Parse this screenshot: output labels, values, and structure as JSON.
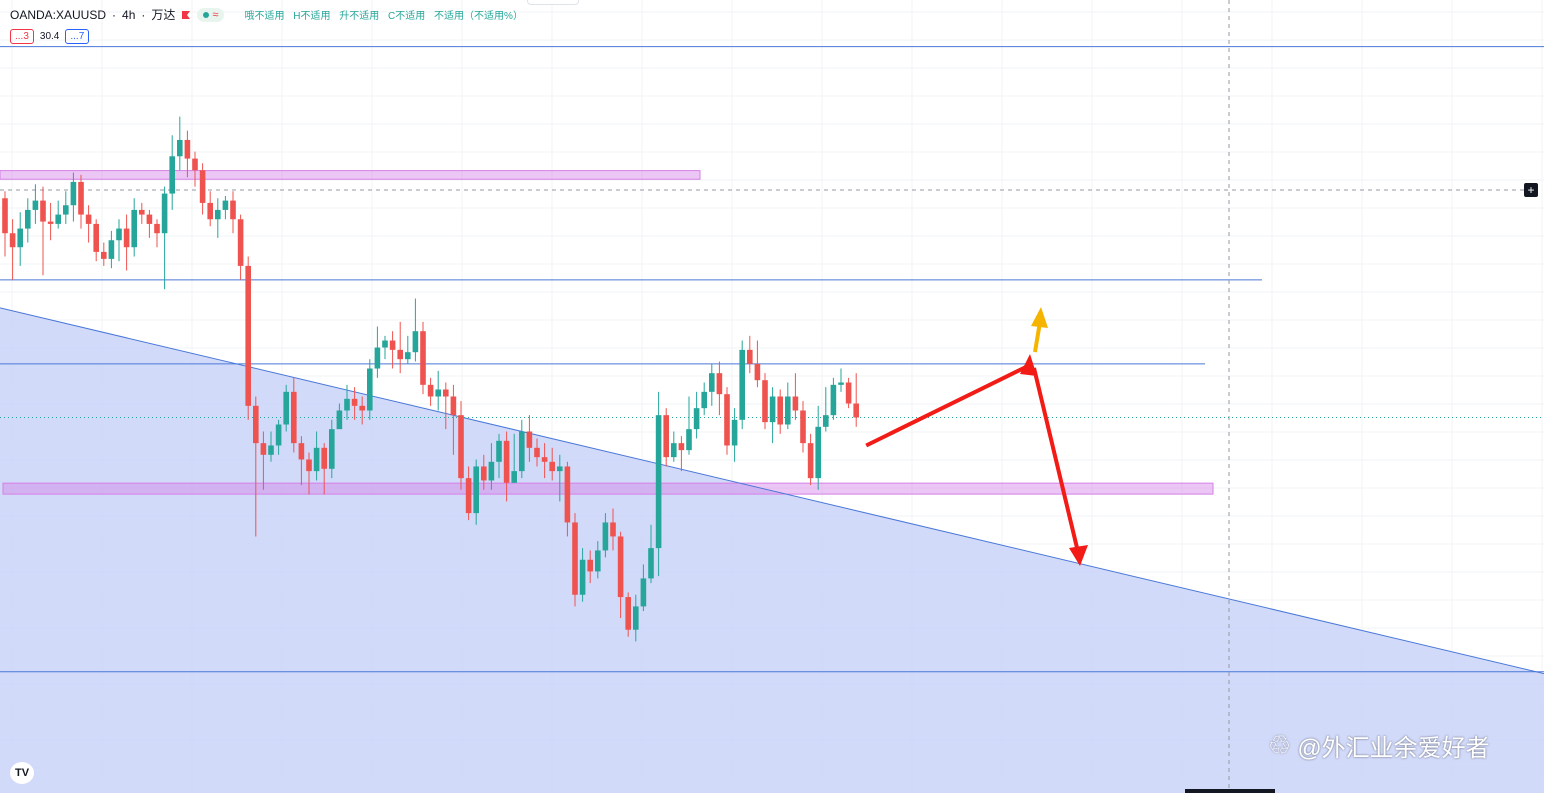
{
  "header": {
    "symbol": "OANDA:XAUUSD",
    "interval": "4h",
    "source": "万达",
    "approx_symbol": "≈",
    "ohlc": [
      "哦不适用",
      "H不适用",
      "升不适用",
      "C不适用",
      "不适用（不适用%）"
    ],
    "indicator_1": "...3",
    "indicator_value": "30.4",
    "indicator_2": "...7"
  },
  "watermark": {
    "text": "@外汇业余爱好者"
  },
  "logo": {
    "text": "TV"
  },
  "colors": {
    "up": "#26a69a",
    "down": "#ef5350",
    "zone_fill": "#c5d0f8",
    "line": "#4a78d8",
    "purple_band": "#d580e6",
    "arrow_red": "#f21b16",
    "arrow_yellow": "#f5b400"
  },
  "chart_data": {
    "type": "candlestick",
    "symbol": "XAUUSD",
    "timeframe": "4h",
    "ohlc": [
      [
        1895,
        1880,
        1898,
        1870
      ],
      [
        1880,
        1874,
        1886,
        1860
      ],
      [
        1874,
        1882,
        1889,
        1866
      ],
      [
        1882,
        1890,
        1895,
        1876
      ],
      [
        1890,
        1894,
        1901,
        1884
      ],
      [
        1894,
        1885,
        1900,
        1862
      ],
      [
        1885,
        1884,
        1893,
        1877
      ],
      [
        1884,
        1888,
        1894,
        1882
      ],
      [
        1888,
        1892,
        1898,
        1884
      ],
      [
        1892,
        1902,
        1906,
        1885
      ],
      [
        1902,
        1888,
        1905,
        1882
      ],
      [
        1888,
        1884,
        1892,
        1876
      ],
      [
        1884,
        1872,
        1886,
        1868
      ],
      [
        1872,
        1869,
        1876,
        1866
      ],
      [
        1869,
        1877,
        1881,
        1865
      ],
      [
        1877,
        1882,
        1886,
        1868
      ],
      [
        1882,
        1874,
        1888,
        1864
      ],
      [
        1874,
        1890,
        1895,
        1870
      ],
      [
        1890,
        1888,
        1893,
        1884
      ],
      [
        1888,
        1884,
        1890,
        1878
      ],
      [
        1884,
        1880,
        1886,
        1874
      ],
      [
        1880,
        1897,
        1900,
        1856
      ],
      [
        1897,
        1913,
        1922,
        1890
      ],
      [
        1913,
        1920,
        1930,
        1907
      ],
      [
        1920,
        1912,
        1924,
        1904
      ],
      [
        1912,
        1907,
        1915,
        1900
      ],
      [
        1907,
        1893,
        1910,
        1888
      ],
      [
        1893,
        1886,
        1898,
        1883
      ],
      [
        1886,
        1890,
        1895,
        1878
      ],
      [
        1890,
        1894,
        1896,
        1886
      ],
      [
        1894,
        1886,
        1898,
        1880
      ],
      [
        1886,
        1866,
        1888,
        1860
      ],
      [
        1866,
        1806,
        1870,
        1800
      ],
      [
        1806,
        1790,
        1810,
        1750
      ],
      [
        1790,
        1785,
        1795,
        1770
      ],
      [
        1785,
        1789,
        1795,
        1782
      ],
      [
        1789,
        1798,
        1800,
        1785
      ],
      [
        1798,
        1812,
        1815,
        1795
      ],
      [
        1812,
        1790,
        1818,
        1786
      ],
      [
        1790,
        1783,
        1793,
        1772
      ],
      [
        1783,
        1778,
        1786,
        1768
      ],
      [
        1778,
        1788,
        1795,
        1774
      ],
      [
        1788,
        1779,
        1790,
        1768
      ],
      [
        1779,
        1796,
        1800,
        1775
      ],
      [
        1796,
        1804,
        1807,
        1798
      ],
      [
        1804,
        1809,
        1815,
        1800
      ],
      [
        1809,
        1806,
        1814,
        1800
      ],
      [
        1806,
        1804,
        1810,
        1798
      ],
      [
        1804,
        1822,
        1826,
        1800
      ],
      [
        1822,
        1831,
        1840,
        1818
      ],
      [
        1831,
        1834,
        1836,
        1826
      ],
      [
        1834,
        1830,
        1838,
        1822
      ],
      [
        1830,
        1826,
        1842,
        1820
      ],
      [
        1826,
        1829,
        1836,
        1824
      ],
      [
        1829,
        1838,
        1852,
        1825
      ],
      [
        1838,
        1815,
        1842,
        1811
      ],
      [
        1815,
        1810,
        1818,
        1806
      ],
      [
        1810,
        1813,
        1821,
        1804
      ],
      [
        1813,
        1810,
        1816,
        1796
      ],
      [
        1810,
        1802,
        1815,
        1785
      ],
      [
        1802,
        1775,
        1808,
        1770
      ],
      [
        1775,
        1760,
        1780,
        1757
      ],
      [
        1760,
        1780,
        1783,
        1755
      ],
      [
        1780,
        1774,
        1785,
        1770
      ],
      [
        1774,
        1782,
        1790,
        1770
      ],
      [
        1782,
        1791,
        1794,
        1775
      ],
      [
        1791,
        1773,
        1795,
        1765
      ],
      [
        1773,
        1778,
        1794,
        1773
      ],
      [
        1778,
        1795,
        1800,
        1775
      ],
      [
        1795,
        1788,
        1802,
        1782
      ],
      [
        1788,
        1784,
        1792,
        1780
      ],
      [
        1784,
        1782,
        1790,
        1775
      ],
      [
        1782,
        1778,
        1788,
        1774
      ],
      [
        1778,
        1780,
        1785,
        1765
      ],
      [
        1780,
        1756,
        1782,
        1750
      ],
      [
        1756,
        1725,
        1760,
        1720
      ],
      [
        1725,
        1740,
        1745,
        1722
      ],
      [
        1740,
        1735,
        1744,
        1730
      ],
      [
        1735,
        1744,
        1748,
        1732
      ],
      [
        1744,
        1756,
        1760,
        1741
      ],
      [
        1756,
        1750,
        1762,
        1744
      ],
      [
        1750,
        1724,
        1752,
        1715
      ],
      [
        1724,
        1710,
        1726,
        1707
      ],
      [
        1710,
        1720,
        1725,
        1705
      ],
      [
        1720,
        1732,
        1738,
        1718
      ],
      [
        1732,
        1745,
        1755,
        1730
      ],
      [
        1745,
        1802,
        1812,
        1733
      ],
      [
        1802,
        1784,
        1805,
        1780
      ],
      [
        1784,
        1790,
        1795,
        1782
      ],
      [
        1790,
        1787,
        1793,
        1778
      ],
      [
        1787,
        1796,
        1810,
        1785
      ],
      [
        1796,
        1805,
        1812,
        1792
      ],
      [
        1805,
        1812,
        1816,
        1802
      ],
      [
        1812,
        1820,
        1824,
        1806
      ],
      [
        1820,
        1811,
        1825,
        1802
      ],
      [
        1811,
        1789,
        1814,
        1785
      ],
      [
        1789,
        1800,
        1805,
        1782
      ],
      [
        1800,
        1830,
        1834,
        1796
      ],
      [
        1830,
        1824,
        1836,
        1820
      ],
      [
        1824,
        1817,
        1834,
        1814
      ],
      [
        1817,
        1799,
        1820,
        1796
      ],
      [
        1799,
        1810,
        1814,
        1790
      ],
      [
        1810,
        1798,
        1813,
        1794
      ],
      [
        1798,
        1810,
        1816,
        1796
      ],
      [
        1810,
        1804,
        1820,
        1800
      ],
      [
        1804,
        1790,
        1808,
        1786
      ],
      [
        1790,
        1775,
        1794,
        1772
      ],
      [
        1775,
        1797,
        1806,
        1770
      ],
      [
        1797,
        1802,
        1814,
        1795
      ],
      [
        1802,
        1815,
        1818,
        1800
      ],
      [
        1815,
        1816,
        1822,
        1812
      ],
      [
        1816,
        1807,
        1818,
        1805
      ],
      [
        1807,
        1801,
        1820,
        1797
      ]
    ],
    "lines": [
      {
        "kind": "horizontal",
        "price": 1960
      },
      {
        "kind": "horizontal",
        "price": 1860
      },
      {
        "kind": "horizontal",
        "price": 1824
      },
      {
        "kind": "horizontal",
        "price": 1692
      },
      {
        "kind": "trendline",
        "from_price": 1848,
        "to_price": 1750
      }
    ],
    "zones": [
      {
        "kind": "band",
        "from_price": 1904,
        "to_price": 1906
      },
      {
        "kind": "band",
        "from_price": 1769,
        "to_price": 1772
      }
    ],
    "ylim": [
      1640,
      1980
    ],
    "grid": true
  }
}
